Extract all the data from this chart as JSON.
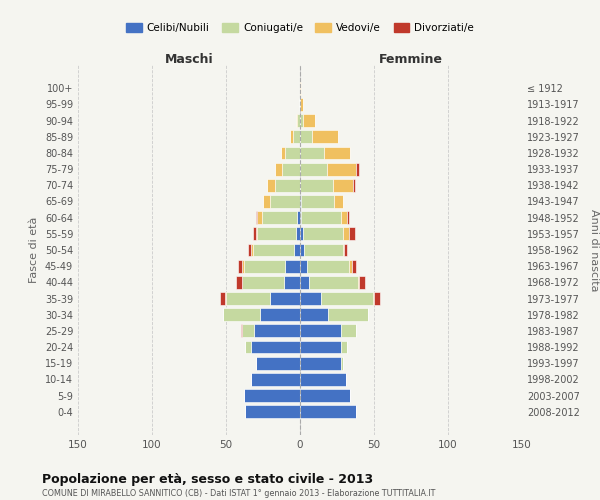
{
  "age_groups": [
    "0-4",
    "5-9",
    "10-14",
    "15-19",
    "20-24",
    "25-29",
    "30-34",
    "35-39",
    "40-44",
    "45-49",
    "50-54",
    "55-59",
    "60-64",
    "65-69",
    "70-74",
    "75-79",
    "80-84",
    "85-89",
    "90-94",
    "95-99",
    "100+"
  ],
  "birth_years": [
    "2008-2012",
    "2003-2007",
    "1998-2002",
    "1993-1997",
    "1988-1992",
    "1983-1987",
    "1978-1982",
    "1973-1977",
    "1968-1972",
    "1963-1967",
    "1958-1962",
    "1953-1957",
    "1948-1952",
    "1943-1947",
    "1938-1942",
    "1933-1937",
    "1928-1932",
    "1923-1927",
    "1918-1922",
    "1913-1917",
    "≤ 1912"
  ],
  "maschi": {
    "celibe": [
      37,
      38,
      33,
      30,
      33,
      31,
      27,
      20,
      11,
      10,
      4,
      3,
      2,
      0,
      0,
      0,
      0,
      0,
      0,
      0,
      0
    ],
    "coniugato": [
      0,
      0,
      0,
      0,
      4,
      8,
      25,
      30,
      28,
      28,
      28,
      26,
      24,
      20,
      17,
      12,
      10,
      5,
      2,
      1,
      0
    ],
    "vedovo": [
      0,
      0,
      0,
      0,
      0,
      0,
      0,
      1,
      0,
      1,
      1,
      1,
      3,
      5,
      5,
      5,
      3,
      2,
      1,
      0,
      0
    ],
    "divorziato": [
      0,
      0,
      0,
      0,
      0,
      1,
      0,
      3,
      4,
      3,
      2,
      2,
      1,
      0,
      0,
      0,
      0,
      0,
      0,
      0,
      0
    ]
  },
  "femmine": {
    "nubile": [
      38,
      34,
      31,
      28,
      28,
      28,
      19,
      14,
      6,
      5,
      3,
      2,
      1,
      1,
      0,
      0,
      0,
      0,
      0,
      0,
      0
    ],
    "coniugata": [
      0,
      0,
      0,
      1,
      4,
      10,
      27,
      35,
      33,
      28,
      26,
      27,
      27,
      22,
      22,
      18,
      16,
      8,
      2,
      0,
      0
    ],
    "vedova": [
      0,
      0,
      0,
      0,
      0,
      0,
      0,
      1,
      1,
      2,
      1,
      4,
      4,
      6,
      14,
      20,
      18,
      18,
      8,
      2,
      1
    ],
    "divorziata": [
      0,
      0,
      0,
      0,
      0,
      0,
      0,
      4,
      4,
      3,
      2,
      4,
      1,
      0,
      1,
      2,
      0,
      0,
      0,
      0,
      0
    ]
  },
  "colors": {
    "celibe": "#4472c4",
    "coniugato": "#c5d9a0",
    "vedovo": "#f0c060",
    "divorziato": "#c0392b"
  },
  "title": "Popolazione per età, sesso e stato civile - 2013",
  "subtitle": "COMUNE DI MIRABELLO SANNITICO (CB) - Dati ISTAT 1° gennaio 2013 - Elaborazione TUTTITALIA.IT",
  "xlabel_left": "Maschi",
  "xlabel_right": "Femmine",
  "ylabel_left": "Fasce di età",
  "ylabel_right": "Anni di nascita",
  "legend_labels": [
    "Celibi/Nubili",
    "Coniugati/e",
    "Vedovi/e",
    "Divorziati/e"
  ],
  "xlim": 150,
  "background_color": "#f5f5f0",
  "plot_bg": "#f5f5f0",
  "grid_color": "#cccccc"
}
